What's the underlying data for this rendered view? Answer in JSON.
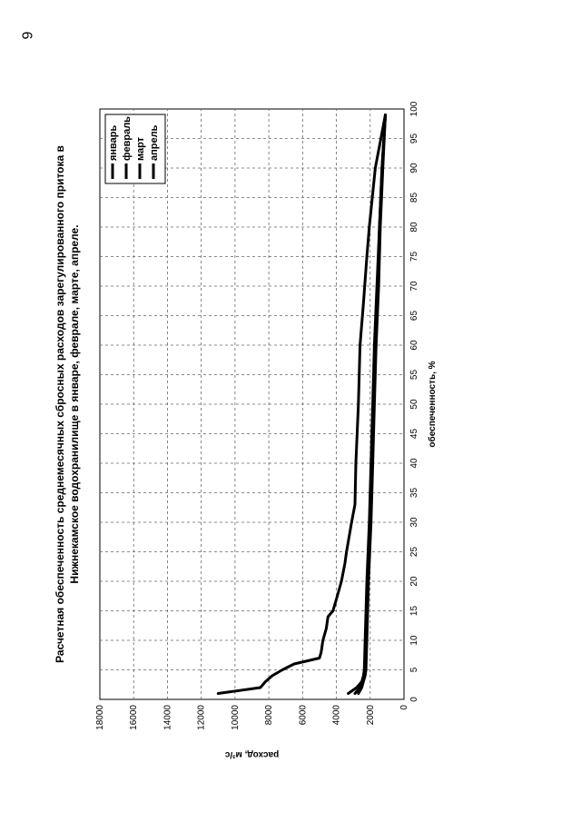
{
  "page": {
    "number": "6"
  },
  "chart_data": {
    "type": "line",
    "title": [
      "Расчетная обеспеченность среднемесячных сбросных расходов зарегулированного притока в",
      "Нижнекамское водохранилище в январе, феврале, марте, апреле."
    ],
    "xlabel": "обеспеченность, %",
    "ylabel": "расход, м³/с",
    "xlim": [
      0,
      100
    ],
    "ylim": [
      0,
      18000
    ],
    "xticks": [
      0,
      5,
      10,
      15,
      20,
      25,
      30,
      35,
      40,
      45,
      50,
      55,
      60,
      65,
      70,
      75,
      80,
      85,
      90,
      95,
      100
    ],
    "yticks": [
      0,
      2000,
      4000,
      6000,
      8000,
      10000,
      12000,
      14000,
      16000,
      18000
    ],
    "grid": true,
    "legend_position": "top-right",
    "series": [
      {
        "name": "январь",
        "x": [
          1,
          2,
          3,
          4,
          5,
          6,
          7,
          8,
          10,
          12,
          14,
          15,
          17,
          20,
          23,
          25,
          30,
          33,
          40,
          50,
          60,
          67,
          75,
          80,
          90,
          99
        ],
        "y": [
          11000,
          8500,
          8200,
          7800,
          7200,
          6500,
          5000,
          4900,
          4800,
          4600,
          4500,
          4200,
          4000,
          3700,
          3500,
          3400,
          3100,
          2900,
          2850,
          2700,
          2600,
          2400,
          2200,
          2050,
          1700,
          1100
        ]
      },
      {
        "name": "февраль",
        "x": [
          1,
          2,
          3,
          4,
          5,
          10,
          20,
          30,
          40,
          50,
          60,
          70,
          80,
          90,
          99
        ],
        "y": [
          3300,
          2800,
          2500,
          2400,
          2350,
          2300,
          2200,
          2050,
          1950,
          1850,
          1750,
          1600,
          1450,
          1300,
          1100
        ]
      },
      {
        "name": "март",
        "x": [
          1,
          2,
          3,
          4,
          5,
          10,
          20,
          30,
          40,
          50,
          60,
          70,
          80,
          90,
          99
        ],
        "y": [
          2900,
          2600,
          2450,
          2350,
          2300,
          2250,
          2150,
          2000,
          1900,
          1800,
          1700,
          1550,
          1450,
          1300,
          1100
        ]
      },
      {
        "name": "апрель",
        "x": [
          1,
          2,
          3,
          4,
          5,
          10,
          20,
          30,
          40,
          50,
          60,
          70,
          80,
          90,
          99
        ],
        "y": [
          2700,
          2500,
          2400,
          2300,
          2250,
          2200,
          2100,
          1950,
          1850,
          1750,
          1650,
          1500,
          1400,
          1250,
          1100
        ]
      }
    ]
  }
}
